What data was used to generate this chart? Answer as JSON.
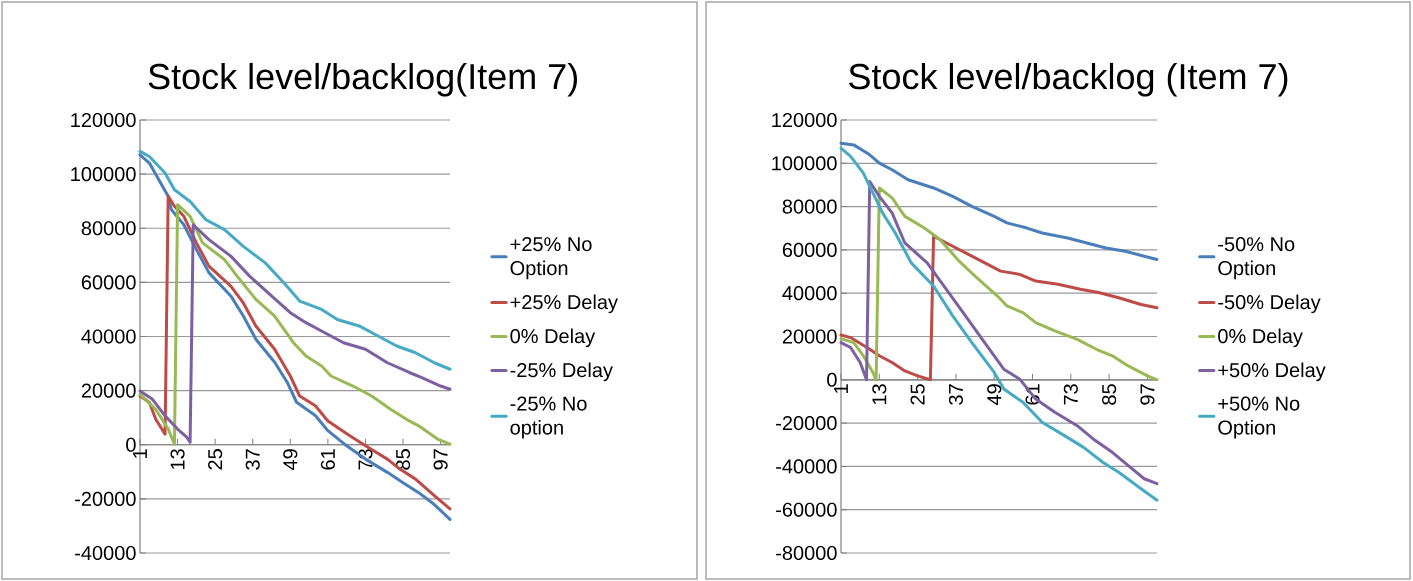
{
  "chart_data": [
    {
      "type": "line",
      "title": "Stock level/backlog(Item 7)",
      "xlim": [
        1,
        100
      ],
      "xticks": [
        1,
        13,
        25,
        37,
        49,
        61,
        73,
        85,
        97
      ],
      "ylim": [
        -40000,
        120000
      ],
      "yticks": [
        -40000,
        -20000,
        0,
        20000,
        40000,
        60000,
        80000,
        100000,
        120000
      ],
      "grid": "y",
      "legend": "right",
      "line_style": "solid",
      "series": [
        {
          "name": "+25% No Option",
          "color": "#4a7ebb",
          "x": [
            1,
            4,
            7,
            10,
            11,
            15,
            19,
            23,
            30,
            34,
            38,
            44,
            48,
            51,
            57,
            61,
            67,
            73,
            80,
            85,
            90,
            95,
            100
          ],
          "values": [
            107100,
            104100,
            97900,
            91800,
            86900,
            81300,
            72200,
            63600,
            55000,
            47600,
            39000,
            30500,
            23100,
            15700,
            10800,
            5200,
            -400,
            -5300,
            -10200,
            -14000,
            -17700,
            -22100,
            -27600
          ]
        },
        {
          "name": "+25% Delay",
          "color": "#be4b48",
          "x": [
            1,
            4,
            6,
            9,
            10,
            12,
            15,
            19,
            23,
            30,
            34,
            38,
            44,
            49,
            52,
            57,
            61,
            68,
            73,
            80,
            84,
            89,
            95,
            100
          ],
          "values": [
            18000,
            15600,
            9500,
            3900,
            91800,
            88100,
            84400,
            74600,
            66000,
            58600,
            52400,
            43900,
            35300,
            25400,
            18000,
            14400,
            8800,
            3300,
            -400,
            -5300,
            -9000,
            -12700,
            -18800,
            -23700
          ]
        },
        {
          "name": "0% Delay",
          "color": "#98b954",
          "x": [
            1,
            6,
            10,
            12,
            13,
            17,
            21,
            28,
            32,
            38,
            44,
            50,
            54,
            59,
            62,
            69,
            75,
            81,
            87,
            90,
            96,
            100
          ],
          "values": [
            18700,
            13100,
            5800,
            200,
            88700,
            84400,
            74600,
            68400,
            62300,
            53700,
            47500,
            37700,
            32800,
            29100,
            25400,
            21700,
            18000,
            13100,
            8800,
            7000,
            2100,
            200
          ]
        },
        {
          "name": "-25% Delay",
          "color": "#7d60a0",
          "x": [
            1,
            5,
            9,
            13,
            16,
            17,
            18,
            23,
            30,
            36,
            43,
            49,
            54,
            60,
            66,
            73,
            80,
            87,
            91,
            97,
            100
          ],
          "values": [
            19900,
            16800,
            10700,
            5800,
            2700,
            900,
            81300,
            75800,
            69700,
            62300,
            55000,
            48800,
            45100,
            41400,
            37700,
            35300,
            30300,
            26700,
            24800,
            21700,
            20500
          ]
        },
        {
          "name": "-25% No option",
          "color": "#46aac5",
          "x": [
            1,
            4,
            9,
            12,
            17,
            22,
            28,
            34,
            41,
            47,
            52,
            59,
            64,
            71,
            77,
            83,
            89,
            95,
            100
          ],
          "values": [
            108400,
            106500,
            100400,
            94200,
            89900,
            83200,
            79500,
            73300,
            67200,
            59800,
            53100,
            50000,
            46300,
            43900,
            40200,
            36500,
            34000,
            30300,
            27900
          ]
        }
      ]
    },
    {
      "type": "line",
      "title": "Stock level/backlog (Item 7)",
      "xlim": [
        1,
        100
      ],
      "xticks": [
        1,
        13,
        25,
        37,
        49,
        61,
        73,
        85,
        97
      ],
      "ylim": [
        -80000,
        120000
      ],
      "yticks": [
        -80000,
        -60000,
        -40000,
        -20000,
        0,
        20000,
        40000,
        60000,
        80000,
        100000,
        120000
      ],
      "grid": "y",
      "legend": "right",
      "line_style": "solid",
      "series": [
        {
          "name": "-50% No Option",
          "color": "#4a7ebb",
          "x": [
            1,
            5,
            10,
            13,
            17,
            22,
            30,
            36,
            42,
            49,
            53,
            59,
            64,
            72,
            78,
            84,
            90,
            96,
            100
          ],
          "values": [
            109300,
            108500,
            103900,
            100100,
            97000,
            92400,
            88600,
            84700,
            80100,
            75500,
            72500,
            70200,
            67800,
            65500,
            63200,
            60900,
            59400,
            57100,
            55600
          ]
        },
        {
          "name": "-50% Delay",
          "color": "#be4b48",
          "x": [
            1,
            4,
            10,
            13,
            17,
            21,
            25,
            29,
            30,
            36,
            42,
            51,
            57,
            62,
            69,
            76,
            82,
            88,
            95,
            100
          ],
          "values": [
            20700,
            19500,
            14100,
            11100,
            8000,
            4100,
            1800,
            0,
            66300,
            61700,
            57100,
            50200,
            48700,
            45600,
            44100,
            41800,
            40200,
            37900,
            34800,
            33300
          ]
        },
        {
          "name": "0% Delay",
          "color": "#98b954",
          "x": [
            1,
            5,
            8,
            11,
            12,
            13,
            17,
            21,
            27,
            32,
            38,
            43,
            50,
            53,
            58,
            62,
            68,
            75,
            81,
            86,
            91,
            97,
            100
          ],
          "values": [
            19000,
            17200,
            11100,
            3400,
            0,
            88600,
            84000,
            75500,
            70200,
            64800,
            54800,
            47900,
            38700,
            34100,
            31000,
            26400,
            22600,
            18700,
            14100,
            11100,
            6400,
            1800,
            0
          ]
        },
        {
          "name": "+50% Delay",
          "color": "#7d60a0",
          "x": [
            1,
            4,
            7,
            9,
            10,
            13,
            17,
            21,
            28,
            34,
            40,
            46,
            52,
            57,
            62,
            68,
            75,
            80,
            86,
            91,
            96,
            100
          ],
          "values": [
            17200,
            14900,
            8000,
            0,
            91600,
            84700,
            77100,
            63200,
            54000,
            41800,
            29500,
            17200,
            4900,
            300,
            -8900,
            -15000,
            -21200,
            -27300,
            -33500,
            -39600,
            -45700,
            -48000
          ]
        },
        {
          "name": "+50% No Option",
          "color": "#46aac5",
          "x": [
            1,
            4,
            8,
            11,
            14,
            18,
            23,
            30,
            36,
            42,
            49,
            52,
            58,
            64,
            71,
            77,
            83,
            88,
            95,
            100
          ],
          "values": [
            107000,
            103200,
            95500,
            86300,
            77100,
            67800,
            54000,
            43300,
            29500,
            17200,
            3400,
            -4300,
            -10400,
            -19600,
            -25800,
            -31200,
            -38100,
            -42700,
            -50300,
            -55600
          ]
        }
      ]
    }
  ]
}
